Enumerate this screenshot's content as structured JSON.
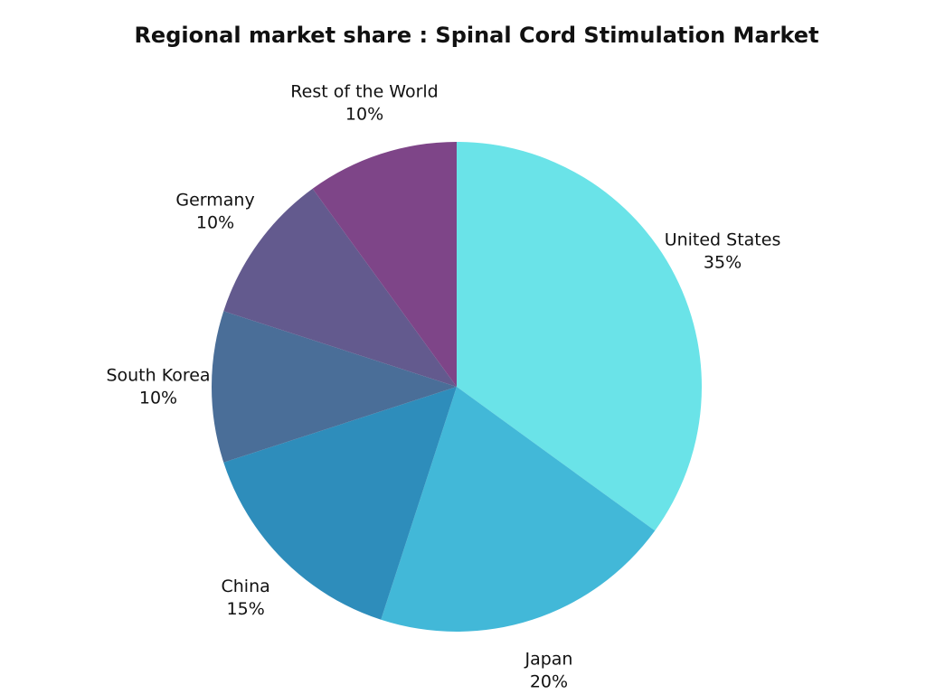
{
  "chart_data": {
    "type": "pie",
    "title": "Regional market share : Spinal Cord Stimulation Market",
    "categories": [
      "United States",
      "Japan",
      "China",
      "South Korea",
      "Germany",
      "Rest of the World"
    ],
    "values": [
      35,
      20,
      15,
      10,
      10,
      10
    ],
    "value_labels": [
      "35%",
      "20%",
      "15%",
      "10%",
      "10%",
      "10%"
    ],
    "colors": [
      "#6ae3e8",
      "#42b8d8",
      "#2e8dbb",
      "#4a6e98",
      "#635a8e",
      "#7e4588"
    ]
  }
}
